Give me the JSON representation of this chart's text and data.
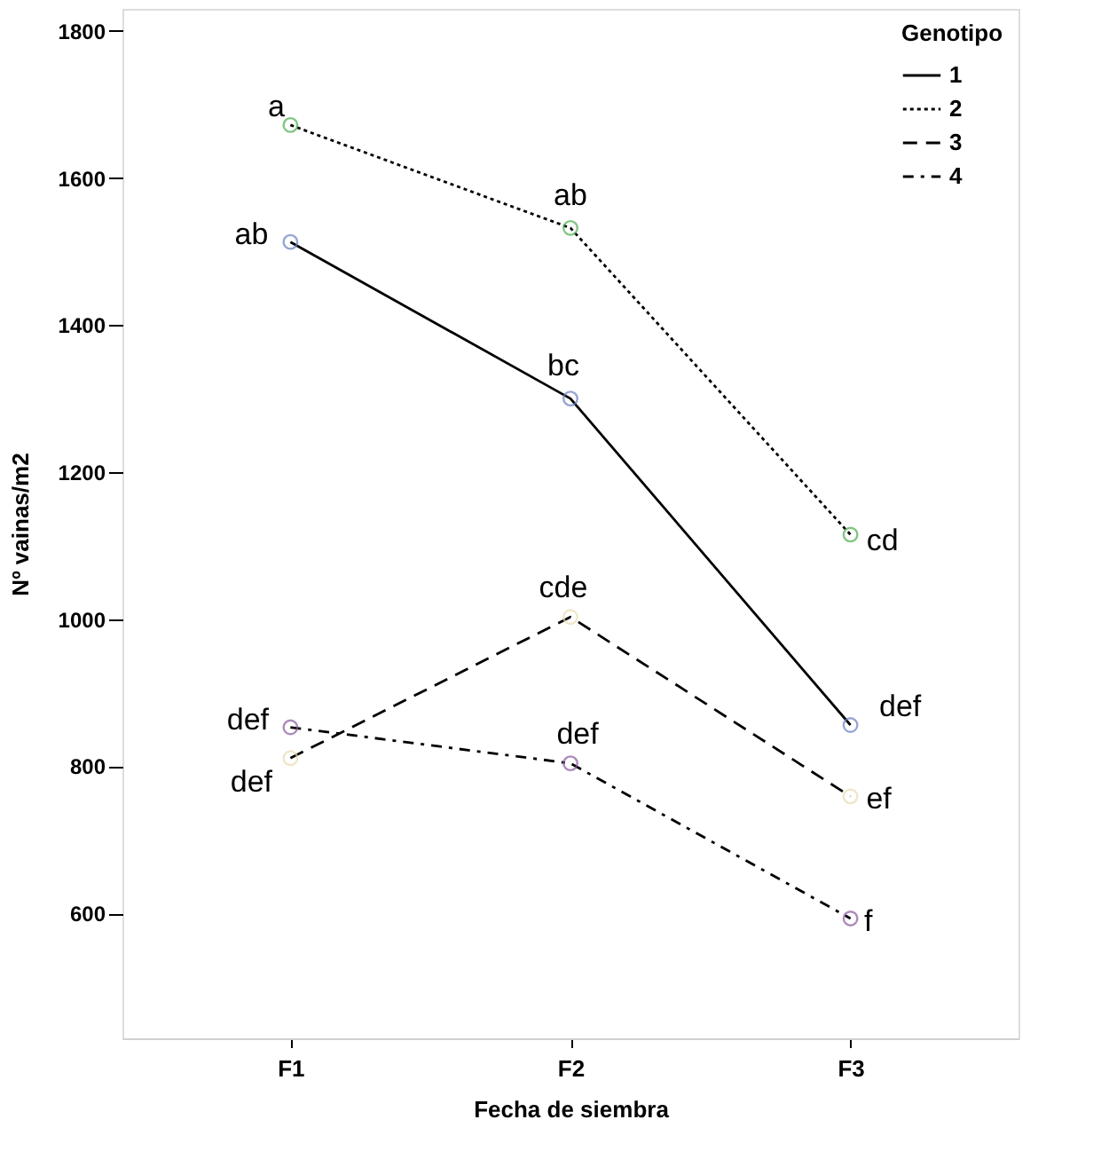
{
  "chart_data": {
    "type": "line",
    "xlabel": "Fecha de siembra",
    "ylabel": "Nº vainas/m2",
    "legend_title": "Genotipo",
    "legend": "top right",
    "marker": "circle",
    "grid": false,
    "categories": [
      "F1",
      "F2",
      "F3"
    ],
    "ylim": [
      430,
      1830
    ],
    "yticks": [
      600,
      800,
      1000,
      1200,
      1400,
      1600,
      1800
    ],
    "series": [
      {
        "name": "1",
        "color": "#000000",
        "line_style": "solid",
        "colors": [
          "#6a7fc0",
          "#6a7fc0",
          "#6a7fc0"
        ],
        "values": [
          1513,
          1300,
          856
        ]
      },
      {
        "name": "2",
        "color": "#000000",
        "line_style": "dotted",
        "colors": [
          "#4caf50",
          "#4caf50",
          "#4caf50"
        ],
        "values": [
          1672,
          1532,
          1115
        ]
      },
      {
        "name": "3",
        "color": "#000000",
        "line_style": "dashed",
        "colors": [
          "#e8dcb0",
          "#e8dcb0",
          "#e8dcb0"
        ],
        "values": [
          811,
          1003,
          759
        ]
      },
      {
        "name": "4",
        "color": "#000000",
        "line_style": "dashdot",
        "colors": [
          "#8a5a9e",
          "#8a5a9e",
          "#8a5a9e"
        ],
        "values": [
          853,
          804,
          593
        ]
      }
    ],
    "annotations": [
      {
        "text": "a",
        "x": "F1",
        "y": 1672
      },
      {
        "text": "ab",
        "x": "F1",
        "y": 1513
      },
      {
        "text": "ab",
        "x": "F2",
        "y": 1532
      },
      {
        "text": "bc",
        "x": "F2",
        "y": 1300
      },
      {
        "text": "cd",
        "x": "F3",
        "y": 1115
      },
      {
        "text": "cde",
        "x": "F2",
        "y": 1003
      },
      {
        "text": "def",
        "x": "F1",
        "y": 853
      },
      {
        "text": "def",
        "x": "F1",
        "y": 811
      },
      {
        "text": "def",
        "x": "F2",
        "y": 804
      },
      {
        "text": "def",
        "x": "F3",
        "y": 856
      },
      {
        "text": "ef",
        "x": "F3",
        "y": 759
      },
      {
        "text": "f",
        "x": "F3",
        "y": 593
      }
    ]
  }
}
